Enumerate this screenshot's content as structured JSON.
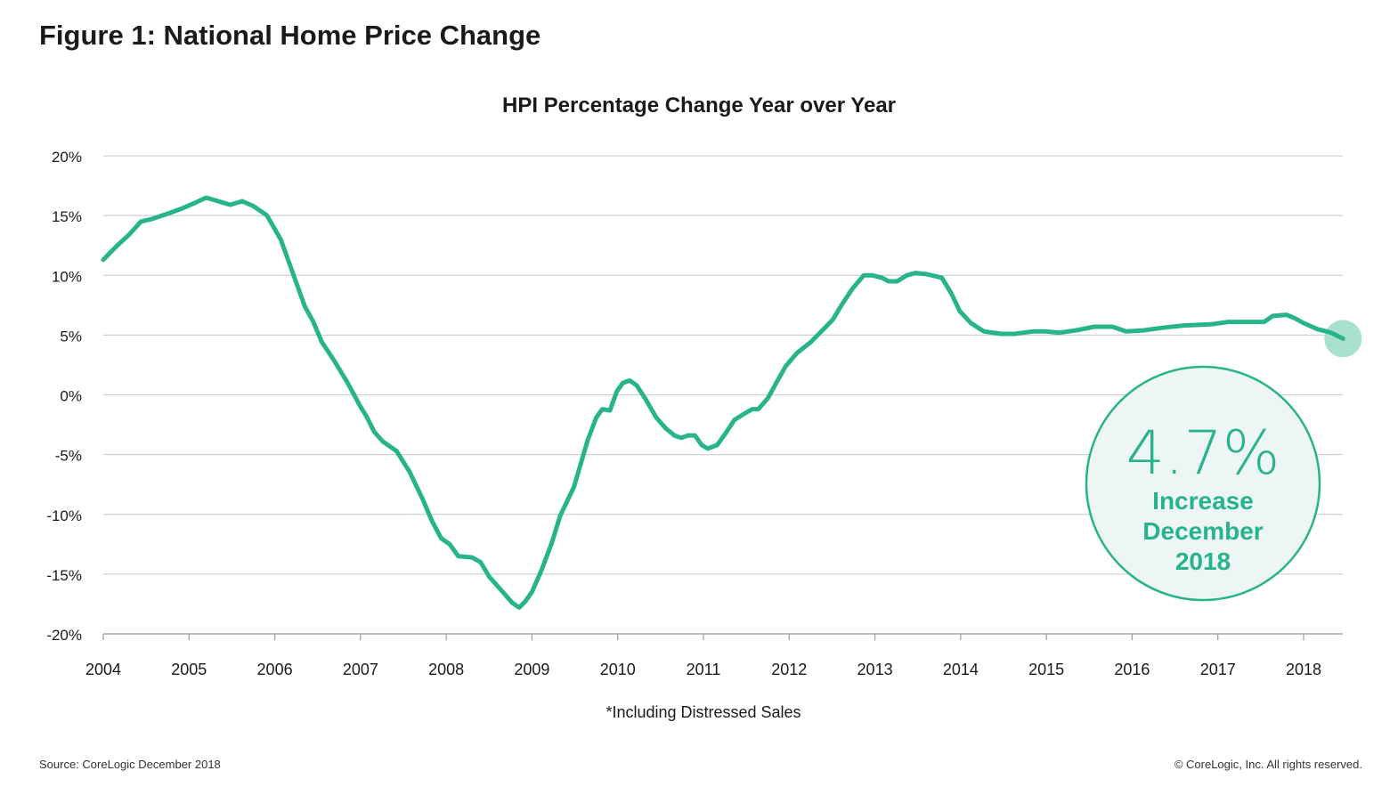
{
  "figure_title": "Figure 1: National Home Price Change",
  "source": "Source: CoreLogic December 2018",
  "copyright": "© CoreLogic, Inc. All rights reserved.",
  "colors": {
    "line": "#27b48a",
    "callout_fill": "#eef6f5",
    "end_dot": "#a9e1cf",
    "grid": "#d0d0d0"
  },
  "callout": {
    "value": "4.7%",
    "line1": "Increase",
    "line2": "December",
    "line3": "2018"
  },
  "chart_data": {
    "type": "line",
    "title": "HPI Percentage Change Year over Year",
    "note": "*Including Distressed Sales",
    "ylim": [
      -20,
      20
    ],
    "xlim": [
      2004,
      2018
    ],
    "grid": true,
    "y_ticks": [
      20,
      15,
      10,
      5,
      0,
      -5,
      -10,
      -15,
      -20
    ],
    "y_tick_labels": [
      "20%",
      "15%",
      "10%",
      "5%",
      "0%",
      "-5%",
      "-10%",
      "-15%",
      "-20%"
    ],
    "x_ticks": [
      2004,
      2005,
      2006,
      2007,
      2008,
      2009,
      2010,
      2011,
      2012,
      2013,
      2014,
      2015,
      2016,
      2017,
      2018
    ],
    "x_tick_labels": [
      "2004",
      "2005",
      "2006",
      "2007",
      "2008",
      "2009",
      "2010",
      "2011",
      "2012",
      "2013",
      "2014",
      "2015",
      "2016",
      "2017",
      "2018"
    ],
    "series": [
      {
        "x": [
          2004.0,
          2004.15,
          2004.3,
          2004.44,
          2004.56,
          2004.77,
          2004.92,
          2005.08,
          2005.2,
          2005.34,
          2005.48,
          2005.62,
          2005.75,
          2005.91,
          2006.07,
          2006.22,
          2006.35,
          2006.45,
          2006.55,
          2006.69,
          2006.85,
          2007.0,
          2007.07,
          2007.16,
          2007.26,
          2007.42,
          2007.57,
          2007.73,
          2007.83,
          2007.94,
          2008.04,
          2008.14,
          2008.3,
          2008.4,
          2008.5,
          2008.66,
          2008.77,
          2008.85,
          2008.92,
          2009.0,
          2009.11,
          2009.23,
          2009.33,
          2009.49,
          2009.56,
          2009.65,
          2009.75,
          2009.82,
          2009.91,
          2009.99,
          2010.06,
          2010.14,
          2010.22,
          2010.32,
          2010.45,
          2010.56,
          2010.66,
          2010.74,
          2010.82,
          2010.9,
          2010.98,
          2011.05,
          2011.16,
          2011.26,
          2011.36,
          2011.47,
          2011.57,
          2011.64,
          2011.75,
          2011.85,
          2011.96,
          2012.09,
          2012.25,
          2012.4,
          2012.51,
          2012.61,
          2012.74,
          2012.87,
          2012.97,
          2013.08,
          2013.16,
          2013.26,
          2013.37,
          2013.47,
          2013.6,
          2013.72,
          2013.78,
          2013.89,
          2013.99,
          2014.12,
          2014.27,
          2014.48,
          2014.63,
          2014.84,
          2014.99,
          2015.15,
          2015.35,
          2015.56,
          2015.77,
          2015.93,
          2016.14,
          2016.34,
          2016.6,
          2016.92,
          2017.12,
          2017.54,
          2017.64,
          2017.8,
          2017.9,
          2018.0,
          2018.16,
          2018.32,
          2018.46
        ],
        "y": [
          11.3,
          12.4,
          13.4,
          14.5,
          14.7,
          15.2,
          15.6,
          16.1,
          16.5,
          16.2,
          15.9,
          16.2,
          15.8,
          15.0,
          13.0,
          10.0,
          7.4,
          6.1,
          4.4,
          2.9,
          1.0,
          -1.0,
          -1.8,
          -3.1,
          -3.9,
          -4.7,
          -6.4,
          -8.8,
          -10.5,
          -12.0,
          -12.5,
          -13.5,
          -13.6,
          -14.0,
          -15.2,
          -16.5,
          -17.4,
          -17.8,
          -17.3,
          -16.5,
          -14.7,
          -12.4,
          -10.1,
          -7.7,
          -6.0,
          -3.8,
          -1.9,
          -1.2,
          -1.3,
          0.3,
          1.0,
          1.2,
          0.8,
          -0.3,
          -1.9,
          -2.8,
          -3.4,
          -3.6,
          -3.4,
          -3.4,
          -4.2,
          -4.5,
          -4.2,
          -3.2,
          -2.1,
          -1.6,
          -1.2,
          -1.2,
          -0.3,
          1.0,
          2.4,
          3.5,
          4.4,
          5.5,
          6.3,
          7.5,
          8.9,
          10.0,
          10.0,
          9.8,
          9.5,
          9.5,
          10.0,
          10.2,
          10.1,
          9.9,
          9.8,
          8.5,
          7.0,
          6.0,
          5.3,
          5.1,
          5.1,
          5.3,
          5.3,
          5.2,
          5.4,
          5.7,
          5.7,
          5.3,
          5.4,
          5.6,
          5.8,
          5.9,
          6.1,
          6.1,
          6.6,
          6.7,
          6.4,
          6.0,
          5.5,
          5.2,
          4.7
        ]
      }
    ]
  }
}
